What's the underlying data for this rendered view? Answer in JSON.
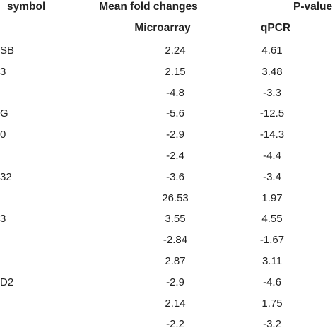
{
  "header": {
    "gene_symbol": "symbol",
    "mean_fold_changes": "Mean fold changes",
    "p_value": "P-value",
    "microarray": "Microarray",
    "qpcr": "qPCR"
  },
  "table": {
    "rows": [
      {
        "gene": "SB",
        "microarray": "2.24",
        "qpcr": "4.61"
      },
      {
        "gene": "3",
        "microarray": "2.15",
        "qpcr": "3.48"
      },
      {
        "microarray": "-4.8",
        "qpcr": "-3.3"
      },
      {
        "gene": "G",
        "microarray": "-5.6",
        "qpcr": "-12.5"
      },
      {
        "gene": "0",
        "microarray": "-2.9",
        "qpcr": "-14.3"
      },
      {
        "microarray": "-2.4",
        "qpcr": "-4.4"
      },
      {
        "gene": "32",
        "microarray": "-3.6",
        "qpcr": "-3.4"
      },
      {
        "microarray": "26.53",
        "qpcr": "1.97"
      },
      {
        "gene": "3",
        "microarray": "3.55",
        "qpcr": "4.55"
      },
      {
        "microarray": "-2.84",
        "qpcr": "-1.67"
      },
      {
        "microarray": "2.87",
        "qpcr": "3.11"
      },
      {
        "gene": "D2",
        "microarray": "-2.9",
        "qpcr": "-4.6"
      },
      {
        "microarray": "2.14",
        "qpcr": "1.75"
      },
      {
        "microarray": "-2.2",
        "qpcr": "-3.2"
      }
    ]
  }
}
